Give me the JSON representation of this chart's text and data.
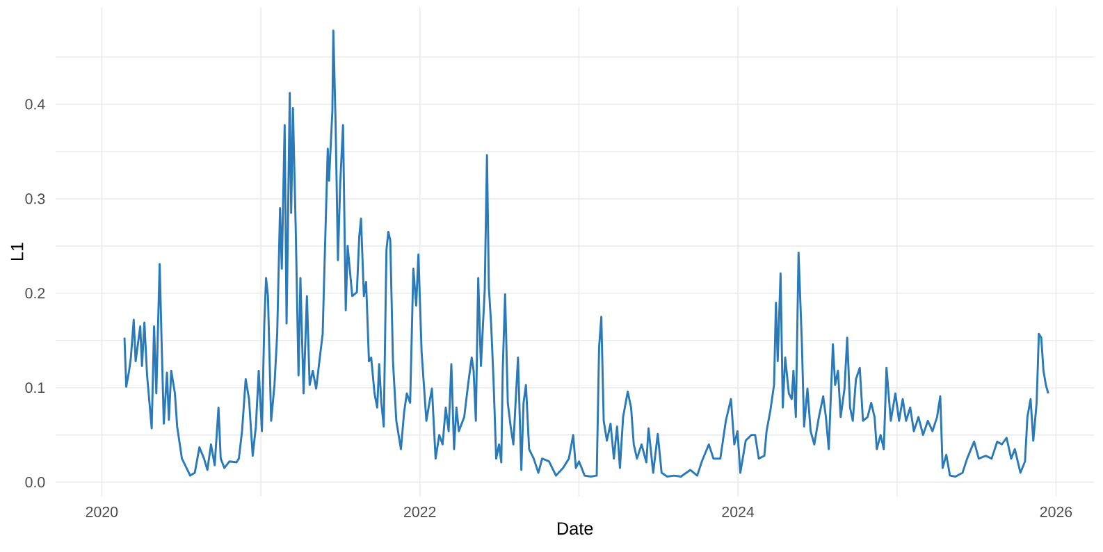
{
  "chart_data": {
    "type": "line",
    "xlabel": "Date",
    "ylabel": "L1",
    "grid": true,
    "xlim": [
      2019.71,
      2026.24
    ],
    "ylim": [
      -0.015,
      0.503
    ],
    "xticks": [
      2020,
      {
        "value": 2021,
        "label": null
      },
      2022,
      {
        "value": 2023,
        "label": null
      },
      2024,
      {
        "value": 2025,
        "label": null
      },
      2026
    ],
    "yticks": [
      {
        "value": 0,
        "label": "0.0"
      },
      {
        "value": 0.05,
        "label": null
      },
      {
        "value": 0.1,
        "label": "0.1"
      },
      {
        "value": 0.15,
        "label": null
      },
      {
        "value": 0.2,
        "label": "0.2"
      },
      {
        "value": 0.25,
        "label": null
      },
      {
        "value": 0.3,
        "label": "0.3"
      },
      {
        "value": 0.35,
        "label": null
      },
      {
        "value": 0.4,
        "label": "0.4"
      },
      {
        "value": 0.45,
        "label": null
      }
    ],
    "series": [
      {
        "color": "#2a7ab9",
        "line_style": "solid",
        "x": [
          2020.143,
          2020.154,
          2020.172,
          2020.183,
          2020.201,
          2020.213,
          2020.242,
          2020.253,
          2020.268,
          2020.285,
          2020.3,
          2020.314,
          2020.329,
          2020.343,
          2020.364,
          2020.378,
          2020.39,
          2020.41,
          2020.422,
          2020.437,
          2020.46,
          2020.474,
          2020.504,
          2020.533,
          2020.556,
          2020.585,
          2020.614,
          2020.643,
          2020.664,
          2020.687,
          2020.71,
          2020.734,
          2020.748,
          2020.771,
          2020.803,
          2020.847,
          2020.862,
          2020.882,
          2020.905,
          2020.926,
          2020.949,
          2020.969,
          2020.987,
          2021.007,
          2021.022,
          2021.033,
          2021.045,
          2021.065,
          2021.086,
          2021.103,
          2021.121,
          2021.132,
          2021.15,
          2021.162,
          2021.182,
          2021.191,
          2021.202,
          2021.22,
          2021.237,
          2021.249,
          2021.269,
          2021.29,
          2021.307,
          2021.327,
          2021.348,
          2021.371,
          2021.389,
          2021.4,
          2021.421,
          2021.429,
          2021.45,
          2021.456,
          2021.47,
          2021.485,
          2021.499,
          2021.517,
          2021.534,
          2021.546,
          2021.575,
          2021.604,
          2021.619,
          2021.63,
          2021.648,
          2021.662,
          2021.68,
          2021.694,
          2021.715,
          2021.732,
          2021.744,
          2021.758,
          2021.773,
          2021.79,
          2021.802,
          2021.814,
          2021.831,
          2021.852,
          2021.881,
          2021.901,
          2021.918,
          2021.939,
          2021.959,
          2021.977,
          2021.991,
          2022.011,
          2022.041,
          2022.064,
          2022.076,
          2022.099,
          2022.122,
          2022.143,
          2022.163,
          2022.181,
          2022.198,
          2022.215,
          2022.23,
          2022.245,
          2022.279,
          2022.303,
          2022.326,
          2022.338,
          2022.352,
          2022.367,
          2022.384,
          2022.408,
          2022.422,
          2022.434,
          2022.448,
          2022.463,
          2022.48,
          2022.498,
          2022.512,
          2022.521,
          2022.536,
          2022.553,
          2022.571,
          2022.588,
          2022.617,
          2022.638,
          2022.652,
          2022.667,
          2022.687,
          2022.716,
          2022.745,
          2022.769,
          2022.812,
          2022.856,
          2022.9,
          2022.937,
          2022.964,
          2022.981,
          2023.001,
          2023.036,
          2023.074,
          2023.112,
          2023.127,
          2023.141,
          2023.156,
          2023.176,
          2023.199,
          2023.22,
          2023.24,
          2023.258,
          2023.278,
          2023.307,
          2023.328,
          2023.345,
          2023.365,
          2023.394,
          2023.424,
          2023.438,
          2023.467,
          2023.496,
          2023.52,
          2023.555,
          2023.598,
          2023.642,
          2023.7,
          2023.744,
          2023.773,
          2023.817,
          2023.846,
          2023.889,
          2023.924,
          2023.956,
          2023.977,
          2023.997,
          2024.015,
          2024.049,
          2024.084,
          2024.108,
          2024.131,
          2024.166,
          2024.18,
          2024.204,
          2024.227,
          2024.239,
          2024.25,
          2024.268,
          2024.282,
          2024.297,
          2024.32,
          2024.338,
          2024.349,
          2024.364,
          2024.381,
          2024.402,
          2024.416,
          2024.437,
          2024.457,
          2024.48,
          2024.509,
          2024.536,
          2024.553,
          2024.571,
          2024.597,
          2024.611,
          2024.629,
          2024.646,
          2024.67,
          2024.687,
          2024.705,
          2024.722,
          2024.742,
          2024.766,
          2024.786,
          2024.815,
          2024.838,
          2024.859,
          2024.873,
          2024.897,
          2024.917,
          2024.934,
          2024.961,
          2024.99,
          2025.013,
          2025.036,
          2025.057,
          2025.083,
          2025.106,
          2025.135,
          2025.164,
          2025.194,
          2025.223,
          2025.252,
          2025.272,
          2025.287,
          2025.31,
          2025.333,
          2025.368,
          2025.412,
          2025.441,
          2025.485,
          2025.514,
          2025.558,
          2025.595,
          2025.63,
          2025.659,
          2025.689,
          2025.718,
          2025.741,
          2025.776,
          2025.805,
          2025.82,
          2025.84,
          2025.857,
          2025.878,
          2025.892,
          2025.907,
          2025.921,
          2025.936,
          2025.951
        ],
        "values": [
          0.153,
          0.101,
          0.118,
          0.132,
          0.172,
          0.128,
          0.165,
          0.123,
          0.169,
          0.113,
          0.084,
          0.057,
          0.165,
          0.094,
          0.231,
          0.138,
          0.062,
          0.116,
          0.066,
          0.118,
          0.094,
          0.059,
          0.025,
          0.015,
          0.007,
          0.01,
          0.037,
          0.025,
          0.013,
          0.04,
          0.018,
          0.079,
          0.025,
          0.015,
          0.022,
          0.021,
          0.025,
          0.054,
          0.109,
          0.088,
          0.028,
          0.059,
          0.118,
          0.054,
          0.168,
          0.216,
          0.197,
          0.065,
          0.103,
          0.157,
          0.29,
          0.226,
          0.378,
          0.168,
          0.412,
          0.285,
          0.396,
          0.265,
          0.113,
          0.216,
          0.094,
          0.197,
          0.103,
          0.118,
          0.099,
          0.132,
          0.157,
          0.226,
          0.353,
          0.319,
          0.393,
          0.478,
          0.382,
          0.235,
          0.315,
          0.378,
          0.182,
          0.25,
          0.197,
          0.201,
          0.26,
          0.279,
          0.197,
          0.212,
          0.128,
          0.132,
          0.094,
          0.079,
          0.125,
          0.084,
          0.059,
          0.246,
          0.265,
          0.256,
          0.128,
          0.065,
          0.035,
          0.074,
          0.094,
          0.084,
          0.226,
          0.187,
          0.241,
          0.138,
          0.065,
          0.088,
          0.099,
          0.025,
          0.05,
          0.04,
          0.079,
          0.054,
          0.125,
          0.035,
          0.079,
          0.054,
          0.069,
          0.103,
          0.132,
          0.118,
          0.065,
          0.216,
          0.123,
          0.204,
          0.346,
          0.206,
          0.168,
          0.109,
          0.025,
          0.04,
          0.021,
          0.118,
          0.199,
          0.084,
          0.059,
          0.04,
          0.132,
          0.013,
          0.084,
          0.103,
          0.035,
          0.025,
          0.01,
          0.025,
          0.022,
          0.007,
          0.015,
          0.025,
          0.05,
          0.015,
          0.022,
          0.007,
          0.006,
          0.007,
          0.143,
          0.175,
          0.065,
          0.044,
          0.062,
          0.025,
          0.059,
          0.015,
          0.069,
          0.096,
          0.079,
          0.04,
          0.025,
          0.04,
          0.021,
          0.057,
          0.01,
          0.051,
          0.01,
          0.006,
          0.007,
          0.006,
          0.013,
          0.007,
          0.022,
          0.04,
          0.025,
          0.025,
          0.065,
          0.088,
          0.04,
          0.054,
          0.01,
          0.044,
          0.05,
          0.05,
          0.025,
          0.028,
          0.054,
          0.076,
          0.103,
          0.19,
          0.128,
          0.221,
          0.079,
          0.132,
          0.094,
          0.088,
          0.118,
          0.069,
          0.243,
          0.147,
          0.059,
          0.099,
          0.054,
          0.04,
          0.069,
          0.091,
          0.069,
          0.035,
          0.146,
          0.103,
          0.118,
          0.069,
          0.099,
          0.153,
          0.079,
          0.065,
          0.109,
          0.121,
          0.065,
          0.069,
          0.084,
          0.069,
          0.035,
          0.05,
          0.035,
          0.121,
          0.065,
          0.094,
          0.065,
          0.088,
          0.065,
          0.079,
          0.054,
          0.069,
          0.05,
          0.065,
          0.054,
          0.069,
          0.091,
          0.015,
          0.029,
          0.007,
          0.006,
          0.01,
          0.025,
          0.043,
          0.025,
          0.028,
          0.025,
          0.043,
          0.04,
          0.047,
          0.025,
          0.035,
          0.01,
          0.022,
          0.069,
          0.088,
          0.044,
          0.084,
          0.157,
          0.153,
          0.118,
          0.103,
          0.094
        ]
      }
    ]
  }
}
